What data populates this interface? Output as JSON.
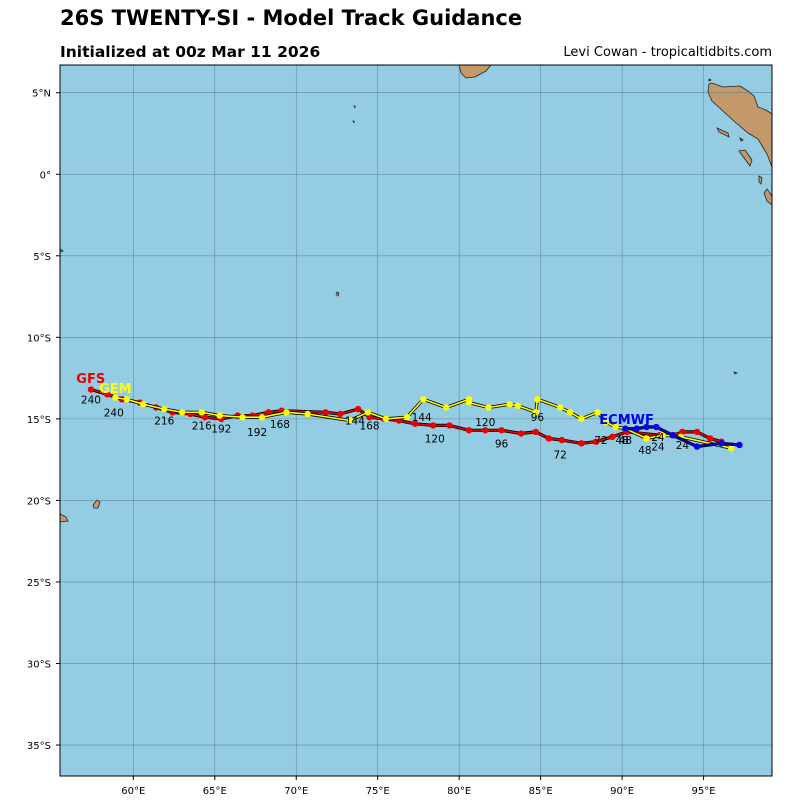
{
  "header": {
    "title": "26S TWENTY-SI - Model Track Guidance",
    "subtitle": "Initialized at 00z Mar 11 2026",
    "credit": "Levi Cowan - tropicaltidbits.com"
  },
  "colors": {
    "ocean": "#94cde3",
    "land": "#c3986a",
    "grid": "#4a6f80",
    "gfs": "#ee0000",
    "gem": "#ffff00",
    "ecmwf": "#0000ee"
  },
  "map": {
    "lon_range": [
      55.5,
      99.2
    ],
    "lat_range": [
      -36.9,
      6.7
    ],
    "lon_ticks": [
      {
        "value": 60,
        "label": "60°E"
      },
      {
        "value": 65,
        "label": "65°E"
      },
      {
        "value": 70,
        "label": "70°E"
      },
      {
        "value": 75,
        "label": "75°E"
      },
      {
        "value": 80,
        "label": "80°E"
      },
      {
        "value": 85,
        "label": "85°E"
      },
      {
        "value": 90,
        "label": "90°E"
      },
      {
        "value": 95,
        "label": "95°E"
      }
    ],
    "lat_ticks": [
      {
        "value": 5,
        "label": "5°N"
      },
      {
        "value": 0,
        "label": "0°"
      },
      {
        "value": -5,
        "label": "5°S"
      },
      {
        "value": -10,
        "label": "10°S"
      },
      {
        "value": -15,
        "label": "15°S"
      },
      {
        "value": -20,
        "label": "20°S"
      },
      {
        "value": -25,
        "label": "25°S"
      },
      {
        "value": -30,
        "label": "30°S"
      },
      {
        "value": -35,
        "label": "35°S"
      }
    ]
  },
  "chart_data": {
    "type": "scatter",
    "title": "26S TWENTY-SI - Model Track Guidance",
    "series": [
      {
        "name": "GFS",
        "color": "#ee0000",
        "points": [
          [
            96.1,
            -16.4
          ],
          [
            95.4,
            -16.2
          ],
          [
            94.6,
            -15.8
          ],
          [
            93.7,
            -15.8
          ],
          [
            93.2,
            -16.0
          ],
          [
            92.3,
            -16.0
          ],
          [
            90.3,
            -15.8
          ],
          [
            89.4,
            -16.1
          ],
          [
            88.4,
            -16.4
          ],
          [
            87.5,
            -16.5
          ],
          [
            86.3,
            -16.3
          ],
          [
            85.5,
            -16.2
          ],
          [
            84.7,
            -15.8
          ],
          [
            83.8,
            -15.9
          ],
          [
            82.6,
            -15.7
          ],
          [
            81.6,
            -15.7
          ],
          [
            80.6,
            -15.7
          ],
          [
            79.4,
            -15.4
          ],
          [
            78.4,
            -15.4
          ],
          [
            77.3,
            -15.3
          ],
          [
            76.3,
            -15.1
          ],
          [
            75.4,
            -15.0
          ],
          [
            74.5,
            -14.9
          ],
          [
            73.8,
            -14.4
          ],
          [
            72.7,
            -14.7
          ],
          [
            71.8,
            -14.6
          ],
          [
            69.1,
            -14.5
          ],
          [
            68.3,
            -14.6
          ],
          [
            67.3,
            -14.8
          ],
          [
            66.4,
            -14.8
          ],
          [
            65.4,
            -15.0
          ],
          [
            64.4,
            -14.9
          ],
          [
            63.5,
            -14.7
          ],
          [
            62.4,
            -14.6
          ],
          [
            61.4,
            -14.3
          ],
          [
            60.4,
            -14.0
          ],
          [
            59.3,
            -13.8
          ],
          [
            58.4,
            -13.5
          ],
          [
            57.4,
            -13.2
          ]
        ],
        "labels": [
          {
            "text": "24",
            "lon": 93.7,
            "lat": -16.6
          },
          {
            "text": "48",
            "lon": 90.2,
            "lat": -16.3
          },
          {
            "text": "72",
            "lon": 86.2,
            "lat": -17.2
          },
          {
            "text": "96",
            "lon": 82.6,
            "lat": -16.5
          },
          {
            "text": "120",
            "lon": 78.5,
            "lat": -16.2
          },
          {
            "text": "144",
            "lon": 73.6,
            "lat": -15.1
          },
          {
            "text": "168",
            "lon": 69.0,
            "lat": -15.3
          },
          {
            "text": "192",
            "lon": 65.4,
            "lat": -15.6
          },
          {
            "text": "216",
            "lon": 61.9,
            "lat": -15.1
          },
          {
            "text": "240",
            "lon": 57.4,
            "lat": -13.8
          }
        ]
      },
      {
        "name": "GEM",
        "color": "#ffff00",
        "points": [
          [
            96.7,
            -16.8
          ],
          [
            93.6,
            -16.1
          ],
          [
            92.5,
            -16.0
          ],
          [
            91.5,
            -16.2
          ],
          [
            90.2,
            -15.6
          ],
          [
            89.6,
            -15.5
          ],
          [
            89.0,
            -15.2
          ],
          [
            88.5,
            -14.6
          ],
          [
            87.5,
            -15.0
          ],
          [
            86.8,
            -14.6
          ],
          [
            86.2,
            -14.3
          ],
          [
            84.8,
            -13.8
          ],
          [
            84.7,
            -14.6
          ],
          [
            83.6,
            -14.2
          ],
          [
            83.1,
            -14.1
          ],
          [
            81.8,
            -14.3
          ],
          [
            80.6,
            -14.0
          ],
          [
            80.6,
            -13.8
          ],
          [
            79.2,
            -14.3
          ],
          [
            77.8,
            -13.8
          ],
          [
            76.8,
            -14.9
          ],
          [
            75.5,
            -15.0
          ],
          [
            74.4,
            -14.6
          ],
          [
            73.3,
            -15.1
          ],
          [
            70.7,
            -14.7
          ],
          [
            69.4,
            -14.6
          ],
          [
            67.9,
            -14.9
          ],
          [
            66.7,
            -14.9
          ],
          [
            65.3,
            -14.8
          ],
          [
            64.2,
            -14.6
          ],
          [
            63.0,
            -14.6
          ],
          [
            61.9,
            -14.4
          ],
          [
            60.6,
            -14.1
          ],
          [
            59.6,
            -13.8
          ],
          [
            58.9,
            -13.7
          ]
        ],
        "labels": [
          {
            "text": "24",
            "lon": 92.2,
            "lat": -16.7
          },
          {
            "text": "48",
            "lon": 91.4,
            "lat": -16.9
          },
          {
            "text": "72",
            "lon": 88.7,
            "lat": -16.3
          },
          {
            "text": "96",
            "lon": 84.8,
            "lat": -14.9
          },
          {
            "text": "120",
            "lon": 81.6,
            "lat": -15.2
          },
          {
            "text": "144",
            "lon": 77.7,
            "lat": -14.9
          },
          {
            "text": "168",
            "lon": 74.5,
            "lat": -15.4
          },
          {
            "text": "192",
            "lon": 67.6,
            "lat": -15.8
          },
          {
            "text": "216",
            "lon": 64.2,
            "lat": -15.4
          },
          {
            "text": "240",
            "lon": 58.8,
            "lat": -14.6
          }
        ]
      },
      {
        "name": "ECMWF",
        "color": "#0000ee",
        "points": [
          [
            97.2,
            -16.6
          ],
          [
            96.1,
            -16.5
          ],
          [
            94.6,
            -16.7
          ],
          [
            93.1,
            -16.0
          ],
          [
            92.1,
            -15.5
          ],
          [
            91.5,
            -15.5
          ],
          [
            90.9,
            -15.6
          ],
          [
            90.2,
            -15.6
          ]
        ],
        "labels": [
          {
            "text": "24",
            "lon": 92.2,
            "lat": -16.1
          },
          {
            "text": "48",
            "lon": 90.0,
            "lat": -16.3
          }
        ]
      }
    ],
    "model_labels": [
      {
        "text": "GFS",
        "lon": 56.5,
        "lat": -12.5,
        "color": "#ee0000"
      },
      {
        "text": "GEM",
        "lon": 57.9,
        "lat": -13.1,
        "color": "#ffff00"
      },
      {
        "text": "ECMWF",
        "lon": 88.6,
        "lat": -15.0,
        "color": "#0000ee"
      }
    ]
  }
}
